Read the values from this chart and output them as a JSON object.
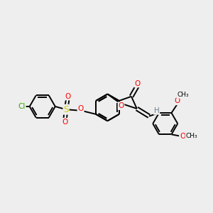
{
  "bg_color": "#eeeeee",
  "bond_color": "#000000",
  "bond_width": 1.4,
  "atom_colors": {
    "O": "#ff0000",
    "S": "#cccc00",
    "Cl": "#33aa00",
    "H": "#708090",
    "C": "#000000"
  },
  "figsize": [
    3.0,
    3.0
  ],
  "dpi": 100
}
